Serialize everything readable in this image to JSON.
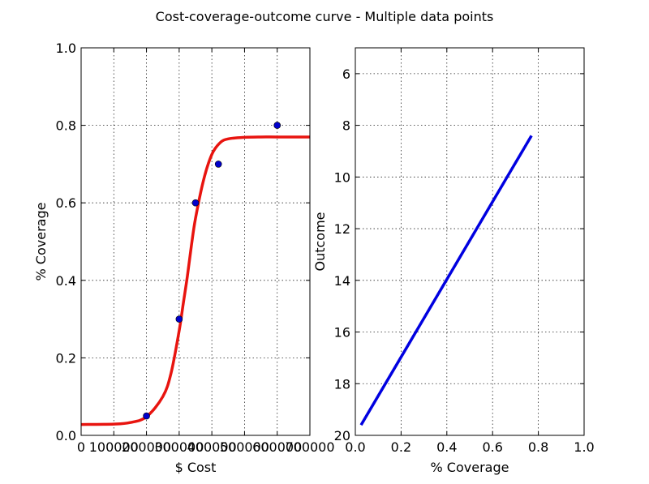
{
  "figure": {
    "title": "Cost-coverage-outcome curve - Multiple data points"
  },
  "chart_data": [
    {
      "type": "scatter",
      "xlabel": "$ Cost",
      "ylabel": "% Coverage",
      "xlim": [
        0,
        700000
      ],
      "ylim": [
        0.0,
        1.0
      ],
      "x_ticks": [
        "0",
        "100000",
        "200000",
        "300000",
        "400000",
        "500000",
        "600000",
        "700000"
      ],
      "x_tick_values": [
        0,
        100000,
        200000,
        300000,
        400000,
        500000,
        600000,
        700000
      ],
      "y_ticks": [
        "0.0",
        "0.2",
        "0.4",
        "0.6",
        "0.8",
        "1.0"
      ],
      "y_tick_values": [
        0.0,
        0.2,
        0.4,
        0.6,
        0.8,
        1.0
      ],
      "grid": true,
      "points": {
        "color": "#0000cc",
        "x": [
          200000,
          300000,
          350000,
          420000,
          600000
        ],
        "y": [
          0.05,
          0.3,
          0.6,
          0.7,
          0.8
        ]
      },
      "fit_curve": {
        "type": "line",
        "color": "#e8140f",
        "x": [
          0,
          100000,
          150000,
          200000,
          250000,
          275000,
          300000,
          312500,
          325000,
          337500,
          350000,
          375000,
          400000,
          425000,
          450000,
          500000,
          550000,
          600000,
          700000
        ],
        "y": [
          0.028,
          0.029,
          0.033,
          0.048,
          0.1,
          0.16,
          0.27,
          0.34,
          0.41,
          0.49,
          0.56,
          0.66,
          0.725,
          0.755,
          0.765,
          0.769,
          0.77,
          0.77,
          0.77
        ]
      }
    },
    {
      "type": "line",
      "xlabel": "% Coverage",
      "ylabel": "Outcome",
      "xlim": [
        0.0,
        1.0
      ],
      "ylim": [
        5,
        20
      ],
      "y_inverted": true,
      "x_ticks": [
        "0.0",
        "0.2",
        "0.4",
        "0.6",
        "0.8",
        "1.0"
      ],
      "x_tick_values": [
        0.0,
        0.2,
        0.4,
        0.6,
        0.8,
        1.0
      ],
      "y_ticks": [
        "6",
        "8",
        "10",
        "12",
        "14",
        "16",
        "18",
        "20"
      ],
      "y_tick_values": [
        6,
        8,
        10,
        12,
        14,
        16,
        18,
        20
      ],
      "grid": true,
      "series": [
        {
          "color": "#0000e0",
          "x": [
            0.025,
            0.77
          ],
          "y": [
            19.6,
            8.4
          ]
        }
      ]
    }
  ]
}
